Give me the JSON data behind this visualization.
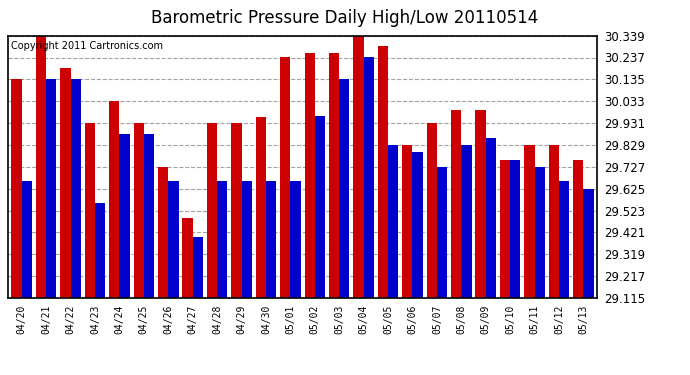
{
  "title": "Barometric Pressure Daily High/Low 20110514",
  "copyright": "Copyright 2011 Cartronics.com",
  "dates": [
    "04/20",
    "04/21",
    "04/22",
    "04/23",
    "04/24",
    "04/25",
    "04/26",
    "04/27",
    "04/28",
    "04/29",
    "04/30",
    "05/01",
    "05/02",
    "05/03",
    "05/04",
    "05/05",
    "05/06",
    "05/07",
    "05/08",
    "05/09",
    "05/10",
    "05/11",
    "05/12",
    "05/13"
  ],
  "highs": [
    30.135,
    30.339,
    30.19,
    29.931,
    30.033,
    29.931,
    29.727,
    29.49,
    29.931,
    29.931,
    29.96,
    30.237,
    30.26,
    30.26,
    30.339,
    30.29,
    29.829,
    29.931,
    29.99,
    29.99,
    29.76,
    29.829,
    29.829,
    29.76
  ],
  "lows": [
    29.659,
    30.135,
    30.135,
    29.557,
    29.88,
    29.88,
    29.659,
    29.4,
    29.659,
    29.659,
    29.659,
    29.659,
    29.965,
    30.135,
    30.237,
    29.829,
    29.795,
    29.727,
    29.829,
    29.863,
    29.761,
    29.727,
    29.659,
    29.625
  ],
  "bar_color_high": "#cc0000",
  "bar_color_low": "#0000cc",
  "background_color": "#ffffff",
  "plot_bg_color": "#ffffff",
  "grid_color": "#aaaaaa",
  "ymin": 29.115,
  "ymax": 30.339,
  "yticks": [
    29.115,
    29.217,
    29.319,
    29.421,
    29.523,
    29.625,
    29.727,
    29.829,
    29.931,
    30.033,
    30.135,
    30.237,
    30.339
  ],
  "title_fontsize": 12,
  "copyright_fontsize": 7
}
